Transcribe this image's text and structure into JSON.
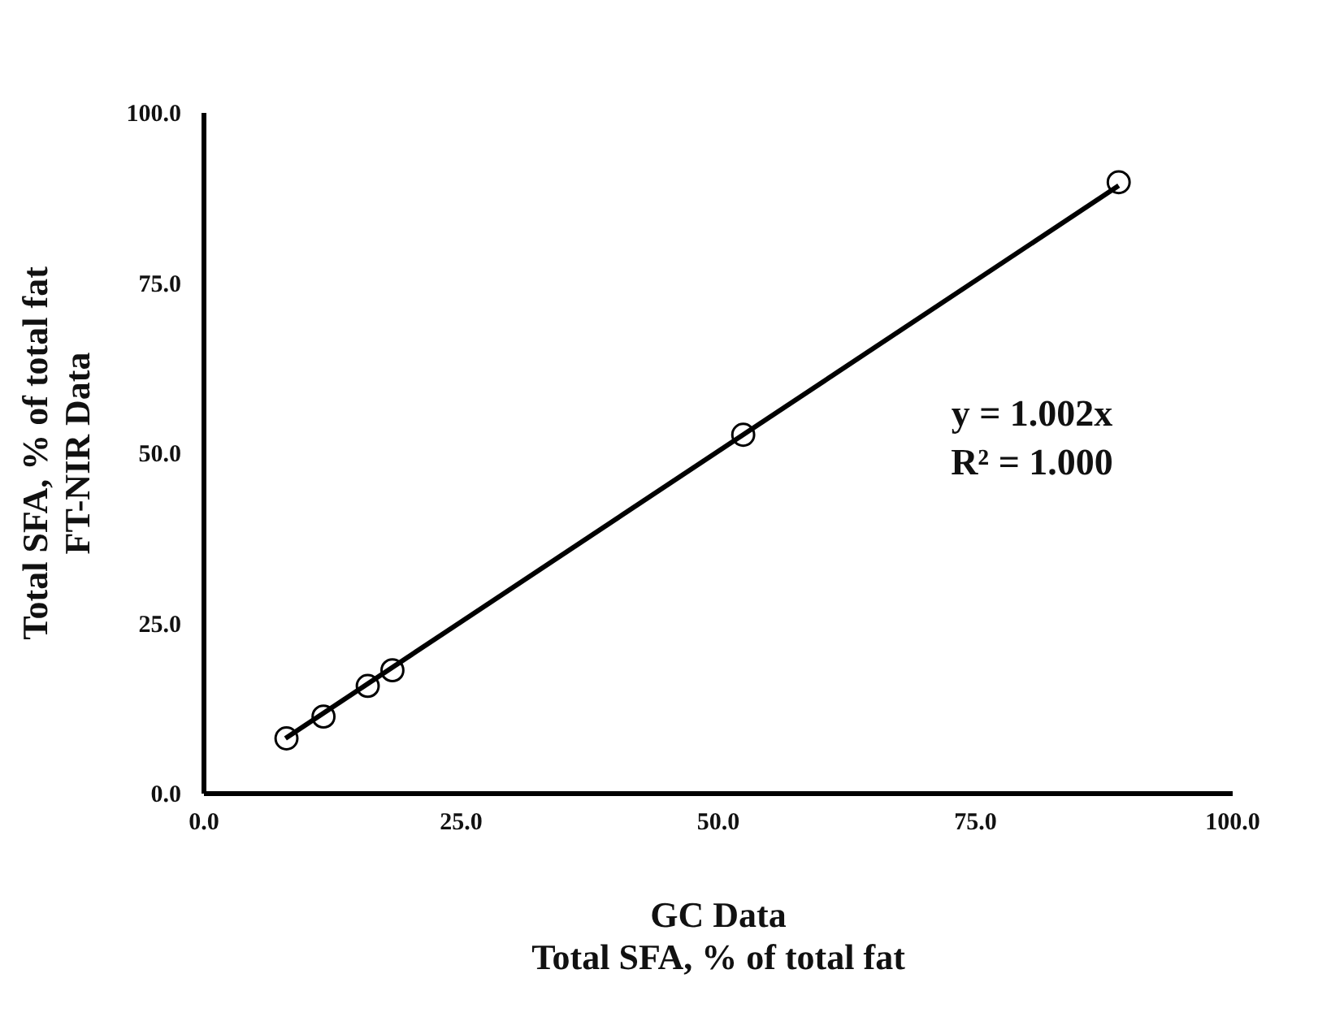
{
  "chart_data": {
    "type": "scatter",
    "xlabel": "GC Data\nTotal SFA, % of total fat",
    "ylabel": "Total SFA, % of total fat\nFT-NIR Data",
    "xlim": [
      0,
      100
    ],
    "ylim": [
      0,
      100
    ],
    "xticks": [
      {
        "value": 0,
        "label": "0.0"
      },
      {
        "value": 25,
        "label": "25.0"
      },
      {
        "value": 50,
        "label": "50.0"
      },
      {
        "value": 75,
        "label": "75.0"
      },
      {
        "value": 100,
        "label": "100.0"
      }
    ],
    "yticks": [
      {
        "value": 0,
        "label": "0.0"
      },
      {
        "value": 25,
        "label": "25.0"
      },
      {
        "value": 50,
        "label": "50.0"
      },
      {
        "value": 75,
        "label": "75.0"
      },
      {
        "value": 100,
        "label": "100.0"
      }
    ],
    "grid": false,
    "annotations": [
      "y = 1.002x",
      "R² = 1.000"
    ],
    "series": [
      {
        "color": "#000000",
        "marker": "circle",
        "x": [
          8.1,
          11.7,
          16.0,
          18.4,
          52.5,
          89.0
        ],
        "values": [
          8.0,
          11.2,
          15.7,
          18.0,
          52.6,
          89.7
        ]
      },
      {
        "type": "line",
        "color": "#000000",
        "line_style": "solid",
        "marker": "none",
        "x": [
          8.0,
          89.0
        ],
        "values": [
          8.0,
          89.2
        ]
      }
    ]
  }
}
